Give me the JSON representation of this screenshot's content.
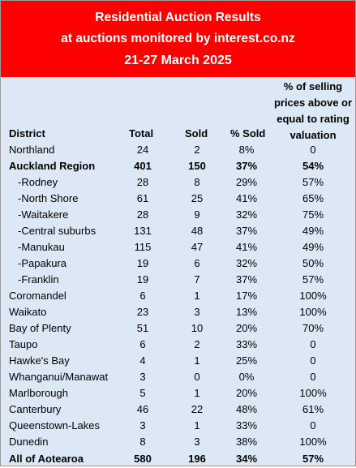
{
  "header": {
    "title_line1": "Residential Auction Results",
    "title_line2": "at auctions monitored by interest.co.nz",
    "date_range": "21-27 March 2025"
  },
  "columns": {
    "district": "District",
    "total": "Total",
    "sold": "Sold",
    "pct_sold": "% Sold",
    "pct_above_rv": "% of selling prices above or equal to rating valuation"
  },
  "rows": [
    {
      "district": "Northland",
      "total": "24",
      "sold": "2",
      "pct_sold": "8%",
      "pct_above_rv": "0"
    },
    {
      "district": "Auckland Region",
      "total": "401",
      "sold": "150",
      "pct_sold": "37%",
      "pct_above_rv": "54%"
    },
    {
      "district": "-Rodney",
      "total": "28",
      "sold": "8",
      "pct_sold": "29%",
      "pct_above_rv": "57%"
    },
    {
      "district": "-North Shore",
      "total": "61",
      "sold": "25",
      "pct_sold": "41%",
      "pct_above_rv": "65%"
    },
    {
      "district": "-Waitakere",
      "total": "28",
      "sold": "9",
      "pct_sold": "32%",
      "pct_above_rv": "75%"
    },
    {
      "district": "-Central suburbs",
      "total": "131",
      "sold": "48",
      "pct_sold": "37%",
      "pct_above_rv": "49%"
    },
    {
      "district": "-Manukau",
      "total": "115",
      "sold": "47",
      "pct_sold": "41%",
      "pct_above_rv": "49%"
    },
    {
      "district": "-Papakura",
      "total": "19",
      "sold": "6",
      "pct_sold": "32%",
      "pct_above_rv": "50%"
    },
    {
      "district": "-Franklin",
      "total": "19",
      "sold": "7",
      "pct_sold": "37%",
      "pct_above_rv": "57%"
    },
    {
      "district": "Coromandel",
      "total": "6",
      "sold": "1",
      "pct_sold": "17%",
      "pct_above_rv": "100%"
    },
    {
      "district": "Waikato",
      "total": "23",
      "sold": "3",
      "pct_sold": "13%",
      "pct_above_rv": "100%"
    },
    {
      "district": "Bay of Plenty",
      "total": "51",
      "sold": "10",
      "pct_sold": "20%",
      "pct_above_rv": "70%"
    },
    {
      "district": "Taupo",
      "total": "6",
      "sold": "2",
      "pct_sold": "33%",
      "pct_above_rv": "0"
    },
    {
      "district": "Hawke's Bay",
      "total": "4",
      "sold": "1",
      "pct_sold": "25%",
      "pct_above_rv": "0"
    },
    {
      "district": "Whanganui/Manawat",
      "total": "3",
      "sold": "0",
      "pct_sold": "0%",
      "pct_above_rv": "0"
    },
    {
      "district": "Marlborough",
      "total": "5",
      "sold": "1",
      "pct_sold": "20%",
      "pct_above_rv": "100%"
    },
    {
      "district": "Canterbury",
      "total": "46",
      "sold": "22",
      "pct_sold": "48%",
      "pct_above_rv": "61%"
    },
    {
      "district": "Queenstown-Lakes",
      "total": "3",
      "sold": "1",
      "pct_sold": "33%",
      "pct_above_rv": "0"
    },
    {
      "district": "Dunedin",
      "total": "8",
      "sold": "3",
      "pct_sold": "38%",
      "pct_above_rv": "100%"
    },
    {
      "district": "All of Aotearoa",
      "total": "580",
      "sold": "196",
      "pct_sold": "34%",
      "pct_above_rv": "57%"
    }
  ],
  "colors": {
    "banner_bg": "#ff0000",
    "banner_text": "#ffffff",
    "table_bg": "#dde8f6"
  }
}
